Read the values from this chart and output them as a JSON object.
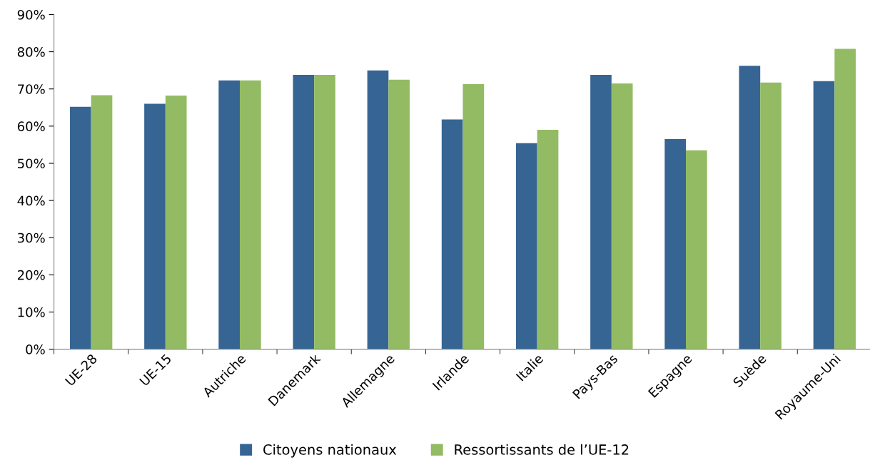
{
  "chart_data": {
    "type": "bar",
    "categories": [
      "UE-28",
      "UE-15",
      "Autriche",
      "Danemark",
      "Allemagne",
      "Irlande",
      "Italie",
      "Pays-Bas",
      "Espagne",
      "Suède",
      "Royaume-Uni"
    ],
    "series": [
      {
        "name": "Citoyens nationaux",
        "color": "#366594",
        "values": [
          65.2,
          66.0,
          72.3,
          73.8,
          75.0,
          61.8,
          55.4,
          73.8,
          56.5,
          76.2,
          72.1
        ]
      },
      {
        "name": "Ressortissants de l’UE-12",
        "color": "#93bb63",
        "values": [
          68.3,
          68.2,
          72.3,
          73.8,
          72.5,
          71.3,
          59.0,
          71.5,
          53.5,
          71.7,
          80.8
        ]
      }
    ],
    "ylim": [
      0,
      90
    ],
    "yticks": [
      {
        "value": 0,
        "label": "0%"
      },
      {
        "value": 10,
        "label": "10%"
      },
      {
        "value": 20,
        "label": "20%"
      },
      {
        "value": 30,
        "label": "30%"
      },
      {
        "value": 40,
        "label": "40%"
      },
      {
        "value": 50,
        "label": "50%"
      },
      {
        "value": 60,
        "label": "60%"
      },
      {
        "value": 70,
        "label": "70%"
      },
      {
        "value": 80,
        "label": "80%"
      },
      {
        "value": 90,
        "label": "90%"
      }
    ],
    "grid": false,
    "legend": "bottom"
  }
}
